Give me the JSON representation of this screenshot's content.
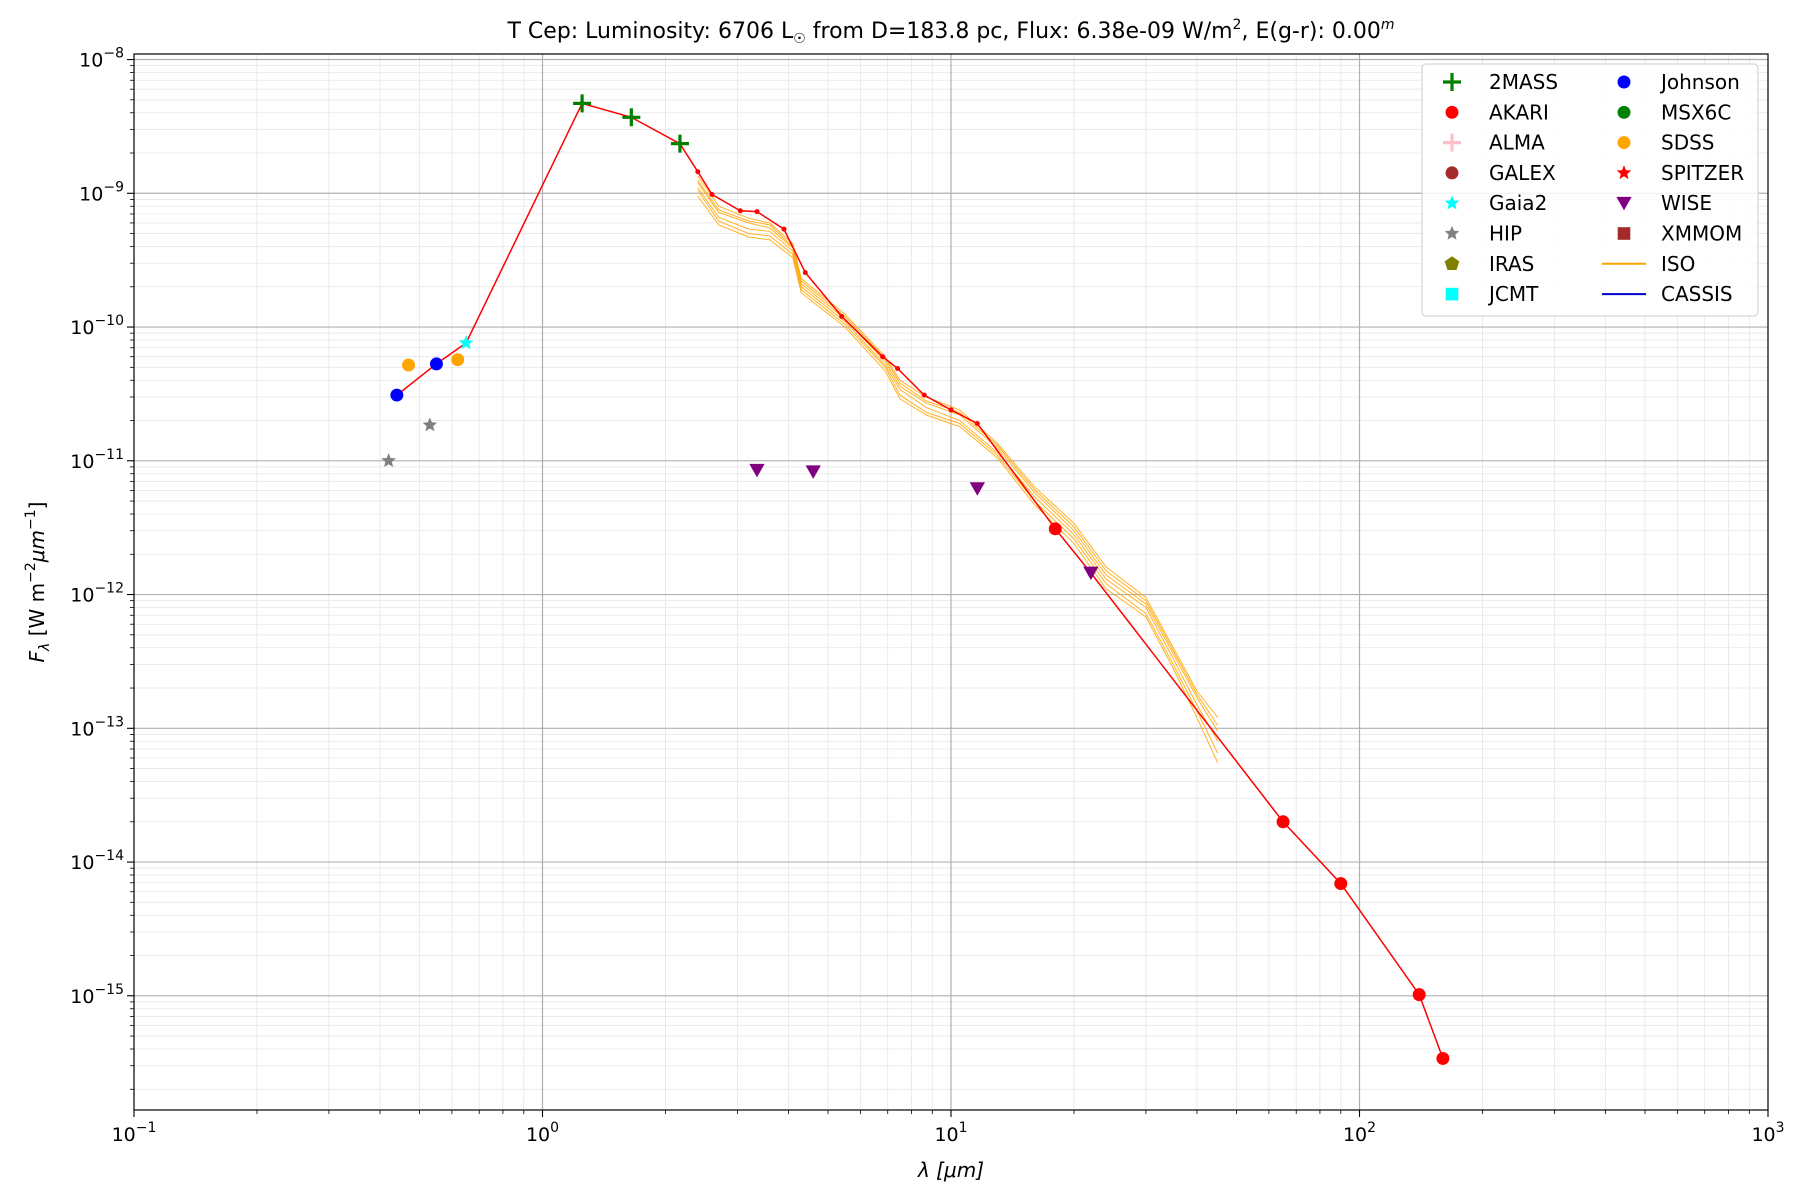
{
  "chart_data": {
    "type": "scatter",
    "title": {
      "prefix": "T Cep:  Luminosity: 6706 L",
      "sun_symbol": "☉",
      "mid": " from D=183.8 pc, Flux: 6.38e-09 W/m",
      "sup1": "2",
      "suffix": ", E(g-r): 0.00",
      "sup2": "m"
    },
    "xlabel": {
      "main": "λ [μm]"
    },
    "ylabel": {
      "base": "F",
      "sub": "λ",
      "rest1": " [W m",
      "sup1": "−2",
      "rest2": "μm",
      "sup2": "−1",
      "rest3": "]"
    },
    "x_scale": "log",
    "y_scale": "log",
    "xlim": [
      0.1,
      1000
    ],
    "ylim": [
      1.4e-16,
      1.1e-08
    ],
    "grid": true,
    "legend_position": "top-right",
    "x_ticks": [
      {
        "value": 0.1,
        "base": "10",
        "exp": "−1"
      },
      {
        "value": 1,
        "base": "10",
        "exp": "0"
      },
      {
        "value": 10,
        "base": "10",
        "exp": "1"
      },
      {
        "value": 100,
        "base": "10",
        "exp": "2"
      },
      {
        "value": 1000,
        "base": "10",
        "exp": "3"
      }
    ],
    "y_ticks": [
      {
        "value": 1e-15,
        "base": "10",
        "exp": "−15"
      },
      {
        "value": 1e-14,
        "base": "10",
        "exp": "−14"
      },
      {
        "value": 1e-13,
        "base": "10",
        "exp": "−13"
      },
      {
        "value": 1e-12,
        "base": "10",
        "exp": "−12"
      },
      {
        "value": 1e-11,
        "base": "10",
        "exp": "−11"
      },
      {
        "value": 1e-10,
        "base": "10",
        "exp": "−10"
      },
      {
        "value": 1e-09,
        "base": "10",
        "exp": "−9"
      },
      {
        "value": 1e-08,
        "base": "10",
        "exp": "−8"
      }
    ],
    "legend": [
      {
        "name": "2MASS",
        "marker": "plus",
        "color": "#008000"
      },
      {
        "name": "AKARI",
        "marker": "circle",
        "color": "#ff0000"
      },
      {
        "name": "ALMA",
        "marker": "plus",
        "color": "#ffc0cb"
      },
      {
        "name": "GALEX",
        "marker": "circle",
        "color": "#a52a2a"
      },
      {
        "name": "Gaia2",
        "marker": "star",
        "color": "#00ffff"
      },
      {
        "name": "HIP",
        "marker": "star",
        "color": "#808080"
      },
      {
        "name": "IRAS",
        "marker": "pentagon",
        "color": "#808000"
      },
      {
        "name": "JCMT",
        "marker": "square",
        "color": "#00ffff"
      },
      {
        "name": "Johnson",
        "marker": "circle",
        "color": "#0000ff"
      },
      {
        "name": "MSX6C",
        "marker": "circle",
        "color": "#008000"
      },
      {
        "name": "SDSS",
        "marker": "circle",
        "color": "#ffa500"
      },
      {
        "name": "SPITZER",
        "marker": "star",
        "color": "#ff0000"
      },
      {
        "name": "WISE",
        "marker": "triangle-down",
        "color": "#800080"
      },
      {
        "name": "XMMOM",
        "marker": "square",
        "color": "#a52a2a"
      },
      {
        "name": "ISO",
        "marker": "line",
        "color": "#ffa500"
      },
      {
        "name": "CASSIS",
        "marker": "line",
        "color": "#0000cd"
      }
    ],
    "model_line": {
      "color": "#ff0000",
      "points": [
        [
          0.44,
          3.1e-11
        ],
        [
          0.55,
          5.3e-11
        ],
        [
          0.65,
          7.6e-11
        ],
        [
          1.25,
          4.7e-09
        ],
        [
          1.65,
          3.7e-09
        ],
        [
          2.17,
          2.35e-09
        ],
        [
          2.4,
          1.45e-09
        ],
        [
          2.6,
          9.8e-10
        ],
        [
          3.05,
          7.4e-10
        ],
        [
          3.35,
          7.3e-10
        ],
        [
          3.9,
          5.4e-10
        ],
        [
          4.4,
          2.55e-10
        ],
        [
          5.4,
          1.2e-10
        ],
        [
          6.8,
          6e-11
        ],
        [
          7.4,
          4.9e-11
        ],
        [
          8.6,
          3.1e-11
        ],
        [
          10.0,
          2.4e-11
        ],
        [
          11.6,
          1.9e-11
        ],
        [
          18,
          3.1e-12
        ],
        [
          22,
          1.45e-12
        ],
        [
          65,
          2e-14
        ],
        [
          90,
          6.9e-15
        ],
        [
          140,
          1.02e-15
        ],
        [
          160,
          3.4e-16
        ]
      ]
    },
    "series": [
      {
        "name": "2MASS",
        "marker": "plus",
        "color": "#008000",
        "points": [
          [
            1.25,
            4.7e-09
          ],
          [
            1.65,
            3.7e-09
          ],
          [
            2.17,
            2.35e-09
          ]
        ]
      },
      {
        "name": "AKARI",
        "marker": "circle",
        "color": "#ff0000",
        "points": [
          [
            18,
            3.1e-12
          ],
          [
            65,
            2e-14
          ],
          [
            90,
            6.9e-15
          ],
          [
            140,
            1.02e-15
          ],
          [
            160,
            3.4e-16
          ]
        ]
      },
      {
        "name": "Gaia2",
        "marker": "star",
        "color": "#00ffff",
        "points": [
          [
            0.65,
            7.6e-11
          ]
        ]
      },
      {
        "name": "HIP",
        "marker": "star",
        "color": "#808080",
        "points": [
          [
            0.42,
            1e-11
          ],
          [
            0.53,
            1.85e-11
          ]
        ]
      },
      {
        "name": "Johnson",
        "marker": "circle",
        "color": "#0000ff",
        "points": [
          [
            0.44,
            3.1e-11
          ],
          [
            0.55,
            5.3e-11
          ]
        ]
      },
      {
        "name": "SDSS",
        "marker": "circle",
        "color": "#ffa500",
        "points": [
          [
            0.47,
            5.2e-11
          ],
          [
            0.62,
            5.7e-11
          ]
        ]
      },
      {
        "name": "WISE",
        "marker": "triangle-down",
        "color": "#800080",
        "points": [
          [
            3.35,
            8.5e-12
          ],
          [
            4.6,
            8.3e-12
          ],
          [
            11.6,
            6.2e-12
          ],
          [
            22,
            1.45e-12
          ]
        ]
      }
    ],
    "iso_spectra": {
      "name": "ISO",
      "color": "#ffa500",
      "spectra": [
        [
          [
            2.4,
            1.2e-09
          ],
          [
            2.7,
            7.2e-10
          ],
          [
            3.2,
            6e-10
          ],
          [
            3.6,
            5.5e-10
          ],
          [
            4.1,
            3.9e-10
          ],
          [
            4.3,
            2.1e-10
          ],
          [
            5.5,
            1.15e-10
          ],
          [
            6.9,
            5.5e-11
          ],
          [
            7.5,
            3.6e-11
          ],
          [
            8.7,
            2.7e-11
          ],
          [
            10.5,
            2.2e-11
          ],
          [
            13,
            1.25e-11
          ],
          [
            16,
            5.8e-12
          ],
          [
            20,
            3e-12
          ],
          [
            24,
            1.4e-12
          ],
          [
            30,
            8.5e-13
          ],
          [
            35,
            3.6e-13
          ],
          [
            40,
            1.7e-13
          ],
          [
            45,
            9.5e-14
          ]
        ],
        [
          [
            2.4,
            1.1e-09
          ],
          [
            2.7,
            6.6e-10
          ],
          [
            3.2,
            5.4e-10
          ],
          [
            3.6,
            5.2e-10
          ],
          [
            4.1,
            3.7e-10
          ],
          [
            4.3,
            2e-10
          ],
          [
            5.5,
            1.1e-10
          ],
          [
            6.9,
            5.2e-11
          ],
          [
            7.5,
            3.4e-11
          ],
          [
            8.7,
            2.5e-11
          ],
          [
            10.5,
            2e-11
          ],
          [
            13,
            1.15e-11
          ],
          [
            16,
            5.4e-12
          ],
          [
            20,
            2.8e-12
          ],
          [
            24,
            1.3e-12
          ],
          [
            30,
            8e-13
          ],
          [
            35,
            3.3e-13
          ],
          [
            40,
            1.5e-13
          ],
          [
            45,
            8e-14
          ]
        ],
        [
          [
            2.4,
            1.05e-09
          ],
          [
            2.7,
            6.2e-10
          ],
          [
            3.2,
            5e-10
          ],
          [
            3.6,
            4.8e-10
          ],
          [
            4.1,
            3.5e-10
          ],
          [
            4.3,
            1.9e-10
          ],
          [
            5.5,
            1.05e-10
          ],
          [
            6.9,
            5e-11
          ],
          [
            7.5,
            3.1e-11
          ],
          [
            8.7,
            2.3e-11
          ],
          [
            10.5,
            1.9e-11
          ],
          [
            13,
            1.1e-11
          ],
          [
            16,
            5e-12
          ],
          [
            20,
            2.6e-12
          ],
          [
            24,
            1.2e-12
          ],
          [
            30,
            7.2e-13
          ],
          [
            35,
            3e-13
          ],
          [
            40,
            1.35e-13
          ],
          [
            45,
            6.5e-14
          ]
        ],
        [
          [
            2.4,
            1.35e-09
          ],
          [
            2.7,
            8e-10
          ],
          [
            3.2,
            6.5e-10
          ],
          [
            3.6,
            6e-10
          ],
          [
            4.1,
            4.2e-10
          ],
          [
            4.3,
            2.3e-10
          ],
          [
            5.5,
            1.25e-10
          ],
          [
            6.9,
            6e-11
          ],
          [
            7.5,
            4e-11
          ],
          [
            8.7,
            3e-11
          ],
          [
            10.5,
            2.4e-11
          ],
          [
            13,
            1.35e-11
          ],
          [
            16,
            6.4e-12
          ],
          [
            20,
            3.4e-12
          ],
          [
            24,
            1.6e-12
          ],
          [
            30,
            9.5e-13
          ],
          [
            35,
            4e-13
          ],
          [
            40,
            1.9e-13
          ],
          [
            45,
            1.2e-13
          ]
        ],
        [
          [
            2.4,
            9.5e-10
          ],
          [
            2.7,
            5.8e-10
          ],
          [
            3.2,
            4.7e-10
          ],
          [
            3.6,
            4.5e-10
          ],
          [
            4.1,
            3.3e-10
          ],
          [
            4.3,
            1.8e-10
          ],
          [
            5.5,
            1e-10
          ],
          [
            6.9,
            4.7e-11
          ],
          [
            7.5,
            2.9e-11
          ],
          [
            8.7,
            2.2e-11
          ],
          [
            10.5,
            1.8e-11
          ],
          [
            13,
            1.05e-11
          ],
          [
            16,
            4.7e-12
          ],
          [
            20,
            2.4e-12
          ],
          [
            24,
            1.1e-12
          ],
          [
            30,
            6.8e-13
          ],
          [
            35,
            2.8e-13
          ],
          [
            40,
            1.2e-13
          ],
          [
            45,
            5.5e-14
          ]
        ],
        [
          [
            2.4,
            1.25e-09
          ],
          [
            2.7,
            7.5e-10
          ],
          [
            3.2,
            6.2e-10
          ],
          [
            3.6,
            5.8e-10
          ],
          [
            4.1,
            4e-10
          ],
          [
            4.3,
            2.2e-10
          ],
          [
            5.5,
            1.2e-10
          ],
          [
            6.9,
            5.8e-11
          ],
          [
            7.5,
            3.8e-11
          ],
          [
            8.7,
            2.8e-11
          ],
          [
            10.5,
            2.3e-11
          ],
          [
            13,
            1.3e-11
          ],
          [
            16,
            6.1e-12
          ],
          [
            20,
            3.2e-12
          ],
          [
            24,
            1.5e-12
          ],
          [
            30,
            9e-13
          ],
          [
            35,
            3.8e-13
          ],
          [
            40,
            1.8e-13
          ],
          [
            45,
            1.05e-13
          ]
        ]
      ]
    }
  }
}
